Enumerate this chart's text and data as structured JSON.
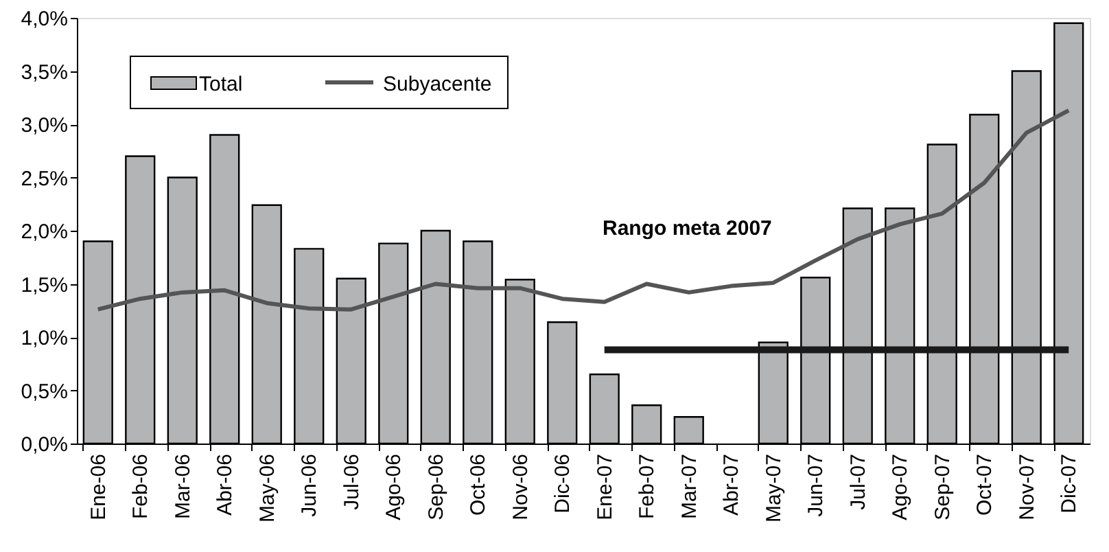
{
  "chart_data": {
    "type": "bar",
    "categories": [
      "Ene-06",
      "Feb-06",
      "Mar-06",
      "Abr-06",
      "May-06",
      "Jun-06",
      "Jul-06",
      "Ago-06",
      "Sep-06",
      "Oct-06",
      "Nov-06",
      "Dic-06",
      "Ene-07",
      "Feb-07",
      "Mar-07",
      "Abr-07",
      "May-07",
      "Jun-07",
      "Jul-07",
      "Ago-07",
      "Sep-07",
      "Oct-07",
      "Nov-07",
      "Dic-07"
    ],
    "series": [
      {
        "name": "Total",
        "color": "#b3b4b6",
        "values": [
          1.9,
          2.7,
          2.5,
          2.9,
          2.24,
          1.83,
          1.55,
          1.88,
          2.0,
          1.9,
          1.54,
          1.14,
          0.65,
          0.36,
          0.25,
          null,
          0.95,
          1.56,
          2.21,
          2.21,
          2.81,
          3.09,
          3.5,
          3.95
        ]
      },
      {
        "name": "Subyacente",
        "type": "line",
        "color": "#555555",
        "values": [
          1.26,
          1.36,
          1.42,
          1.44,
          1.32,
          1.27,
          1.26,
          1.38,
          1.5,
          1.46,
          1.46,
          1.36,
          1.33,
          1.5,
          1.42,
          1.48,
          1.51,
          1.72,
          1.92,
          2.06,
          2.16,
          2.45,
          2.92,
          3.13
        ]
      },
      {
        "type": "line",
        "color": "#1a1a1a",
        "values": [
          null,
          null,
          null,
          null,
          null,
          null,
          null,
          null,
          null,
          null,
          null,
          null,
          0.88,
          0.88,
          0.88,
          0.88,
          0.88,
          0.88,
          0.88,
          0.88,
          0.88,
          0.88,
          0.88,
          0.88
        ]
      }
    ],
    "annotations": [
      "Rango meta 2007"
    ],
    "ylim": [
      0,
      4
    ],
    "yticks": [
      {
        "value": 0,
        "label": "0,0%"
      },
      {
        "value": 0.5,
        "label": "0,5%"
      },
      {
        "value": 1,
        "label": "1,0%"
      },
      {
        "value": 1.5,
        "label": "1,5%"
      },
      {
        "value": 2,
        "label": "2,0%"
      },
      {
        "value": 2.5,
        "label": "2,5%"
      },
      {
        "value": 3,
        "label": "3,0%"
      },
      {
        "value": 3.5,
        "label": "3,5%"
      },
      {
        "value": 4,
        "label": "4,0%"
      }
    ],
    "grid": false,
    "legend": "top left"
  }
}
